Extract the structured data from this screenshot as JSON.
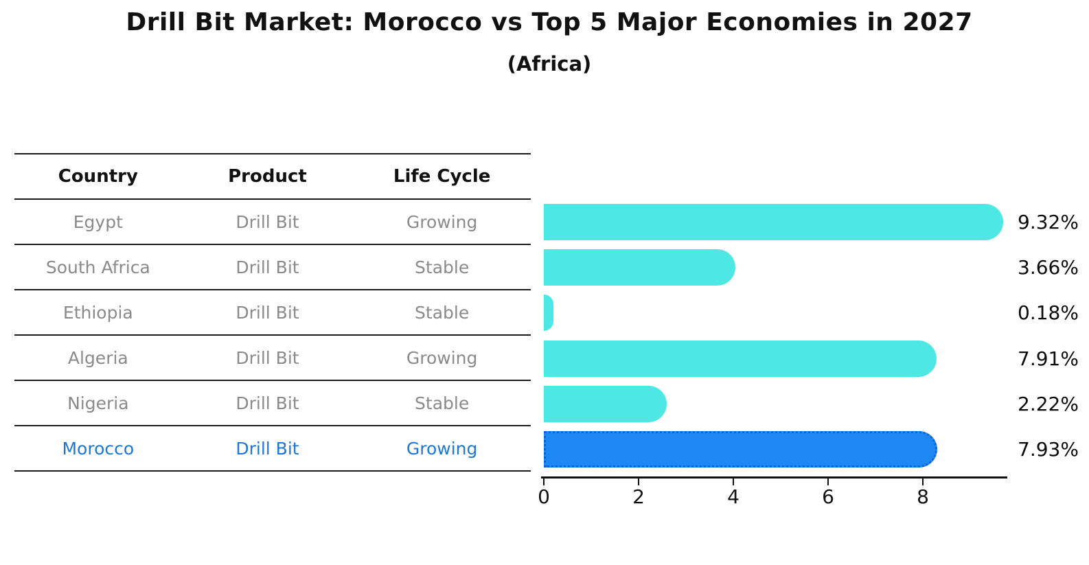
{
  "title": "Drill Bit Market: Morocco vs Top 5 Major Economies in 2027",
  "subtitle": "(Africa)",
  "table": {
    "headers": [
      "Country",
      "Product",
      "Life Cycle"
    ],
    "highlight_text_color": "#1E78D2",
    "normal_text_color": "#8a8a8a",
    "rows": [
      {
        "country": "Egypt",
        "product": "Drill Bit",
        "life_cycle": "Growing",
        "highlight": false
      },
      {
        "country": "South Africa",
        "product": "Drill Bit",
        "life_cycle": "Stable",
        "highlight": false
      },
      {
        "country": "Ethiopia",
        "product": "Drill Bit",
        "life_cycle": "Stable",
        "highlight": false
      },
      {
        "country": "Algeria",
        "product": "Drill Bit",
        "life_cycle": "Growing",
        "highlight": false
      },
      {
        "country": "Nigeria",
        "product": "Drill Bit",
        "life_cycle": "Stable",
        "highlight": false
      },
      {
        "country": "Morocco",
        "product": "Drill Bit",
        "life_cycle": "Growing",
        "highlight": true
      }
    ]
  },
  "chart_data": {
    "type": "bar",
    "orientation": "horizontal",
    "categories": [
      "Egypt",
      "South Africa",
      "Ethiopia",
      "Algeria",
      "Nigeria",
      "Morocco"
    ],
    "values": [
      9.32,
      3.66,
      0.18,
      7.91,
      2.22,
      7.93
    ],
    "labels": [
      "9.32%",
      "3.66%",
      "0.18%",
      "7.91%",
      "2.22%",
      "7.93%"
    ],
    "x_ticks": [
      0,
      2,
      4,
      6,
      8
    ],
    "xlim": [
      0,
      9.78
    ],
    "grid": false,
    "legend": null,
    "bar_color": "#4DE8E4",
    "highlight_index": 5,
    "highlight_bar_color": "#1E88F2",
    "highlight_bar_border_color": "#0C62D6",
    "axis_color": "#111111",
    "value_label_color": "#0a0a0a"
  }
}
